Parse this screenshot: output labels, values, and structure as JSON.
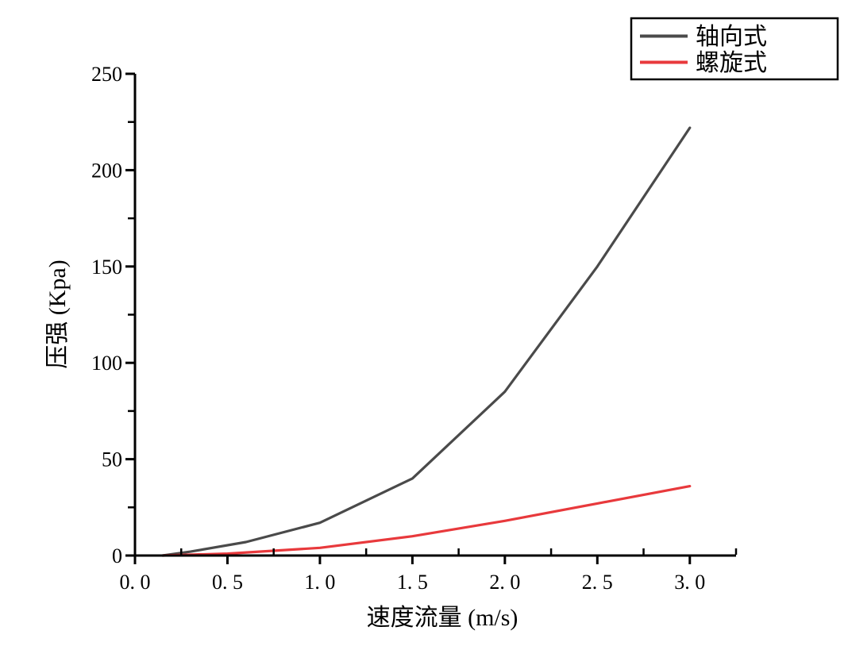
{
  "figure": {
    "background": "#ffffff",
    "axis_color": "#000000"
  },
  "chart_data": {
    "type": "line",
    "title": "",
    "xlabel": "速度流量 (m/s)",
    "ylabel": "压强 (Kpa)",
    "xlim": [
      0,
      3.25
    ],
    "ylim": [
      0,
      250
    ],
    "grid": false,
    "legend_position": "top-right",
    "x_major_ticks": [
      0,
      0.5,
      1.0,
      1.5,
      2.0,
      2.5,
      3.0
    ],
    "x_major_tick_labels": [
      "0. 0",
      "0. 5",
      "1. 0",
      "1. 5",
      "2. 0",
      "2. 5",
      "3. 0"
    ],
    "x_minor_ticks": [
      0.25,
      0.75,
      1.25,
      1.75,
      2.25,
      2.75,
      3.25
    ],
    "y_major_ticks": [
      0,
      50,
      100,
      150,
      200,
      250
    ],
    "y_major_tick_labels": [
      "0",
      "50",
      "100",
      "150",
      "200",
      "250"
    ],
    "y_minor_ticks": [
      25,
      75,
      125,
      175,
      225
    ],
    "series": [
      {
        "name": "轴向式",
        "color": "#4a4a4a",
        "x": [
          0.15,
          0.3,
          0.6,
          1.0,
          1.5,
          2.0,
          2.5,
          3.0
        ],
        "y": [
          0,
          2,
          7,
          17,
          40,
          85,
          150,
          222
        ]
      },
      {
        "name": "螺旋式",
        "color": "#e8393c",
        "x": [
          0.15,
          0.5,
          1.0,
          1.5,
          2.0,
          2.5,
          3.0
        ],
        "y": [
          0,
          1,
          4,
          10,
          18,
          27,
          36
        ]
      }
    ]
  },
  "legend": {
    "items": [
      {
        "label": "轴向式",
        "color": "#4a4a4a"
      },
      {
        "label": "螺旋式",
        "color": "#e8393c"
      }
    ]
  }
}
